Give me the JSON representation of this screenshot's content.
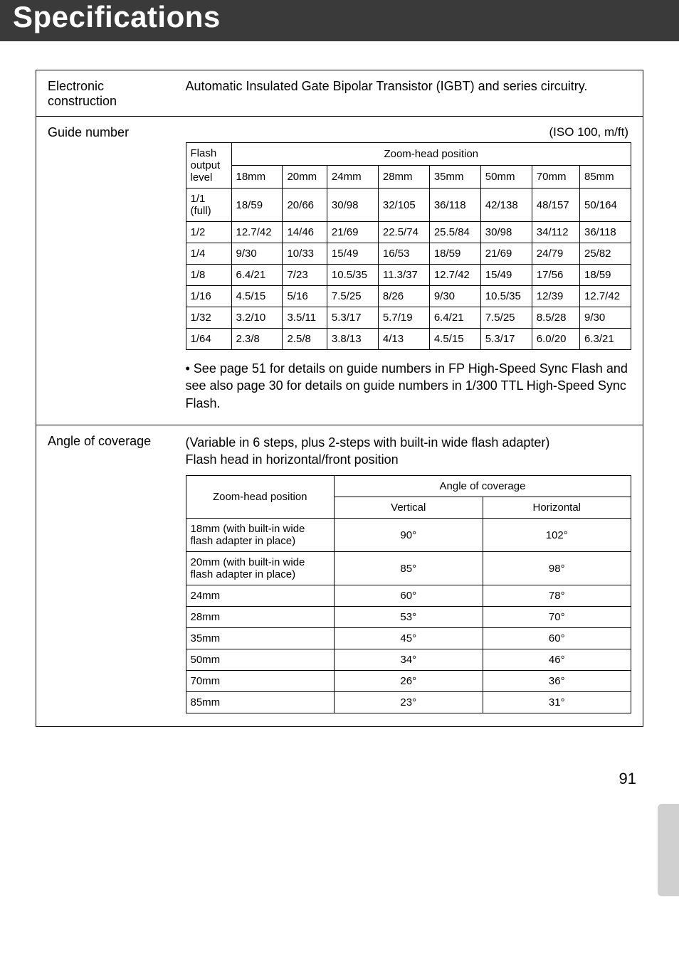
{
  "title": "Specifications",
  "page_number": "91",
  "rows": {
    "electronic": {
      "label": "Electronic construction",
      "value": "Automatic Insulated Gate Bipolar Transistor (IGBT) and series circuitry."
    },
    "guide": {
      "label": "Guide number",
      "iso_note": "(ISO 100, m/ft)",
      "table": {
        "rowhead_top": "Flash output level",
        "colhead_group": "Zoom-head position",
        "columns": [
          "18mm",
          "20mm",
          "24mm",
          "28mm",
          "35mm",
          "50mm",
          "70mm",
          "85mm"
        ],
        "rows": [
          {
            "label": "1/1 (full)",
            "vals": [
              "18/59",
              "20/66",
              "30/98",
              "32/105",
              "36/118",
              "42/138",
              "48/157",
              "50/164"
            ]
          },
          {
            "label": "1/2",
            "vals": [
              "12.7/42",
              "14/46",
              "21/69",
              "22.5/74",
              "25.5/84",
              "30/98",
              "34/112",
              "36/118"
            ]
          },
          {
            "label": "1/4",
            "vals": [
              "9/30",
              "10/33",
              "15/49",
              "16/53",
              "18/59",
              "21/69",
              "24/79",
              "25/82"
            ]
          },
          {
            "label": "1/8",
            "vals": [
              "6.4/21",
              "7/23",
              "10.5/35",
              "11.3/37",
              "12.7/42",
              "15/49",
              "17/56",
              "18/59"
            ]
          },
          {
            "label": "1/16",
            "vals": [
              "4.5/15",
              "5/16",
              "7.5/25",
              "8/26",
              "9/30",
              "10.5/35",
              "12/39",
              "12.7/42"
            ]
          },
          {
            "label": "1/32",
            "vals": [
              "3.2/10",
              "3.5/11",
              "5.3/17",
              "5.7/19",
              "6.4/21",
              "7.5/25",
              "8.5/28",
              "9/30"
            ]
          },
          {
            "label": "1/64",
            "vals": [
              "2.3/8",
              "2.5/8",
              "3.8/13",
              "4/13",
              "4.5/15",
              "5.3/17",
              "6.0/20",
              "6.3/21"
            ]
          }
        ]
      },
      "note": "• See page 51 for details on guide numbers in FP High-Speed Sync Flash and see also page 30 for details on guide numbers in 1/300 TTL High-Speed Sync Flash."
    },
    "coverage": {
      "label": "Angle of coverage",
      "intro_line1": "(Variable in 6 steps, plus 2-steps with built-in wide flash adapter)",
      "intro_line2": "Flash head in horizontal/front position",
      "table": {
        "col1_header": "Zoom-head position",
        "group_header": "Angle of coverage",
        "sub_headers": [
          "Vertical",
          "Horizontal"
        ],
        "rows": [
          {
            "label": "18mm (with built-in wide flash adapter in place)",
            "v": "90°",
            "h": "102°"
          },
          {
            "label": "20mm (with built-in wide flash adapter in place)",
            "v": "85°",
            "h": "98°"
          },
          {
            "label": "24mm",
            "v": "60°",
            "h": "78°"
          },
          {
            "label": "28mm",
            "v": "53°",
            "h": "70°"
          },
          {
            "label": "35mm",
            "v": "45°",
            "h": "60°"
          },
          {
            "label": "50mm",
            "v": "34°",
            "h": "46°"
          },
          {
            "label": "70mm",
            "v": "26°",
            "h": "36°"
          },
          {
            "label": "85mm",
            "v": "23°",
            "h": "31°"
          }
        ]
      }
    }
  },
  "style": {
    "title_bg": "#3a3a3a",
    "title_color": "#ffffff",
    "title_fontsize": 42,
    "body_fontsize": 18,
    "table_fontsize": 15,
    "side_tab_color": "#d0d0d0",
    "border_color": "#000000",
    "background": "#ffffff"
  }
}
